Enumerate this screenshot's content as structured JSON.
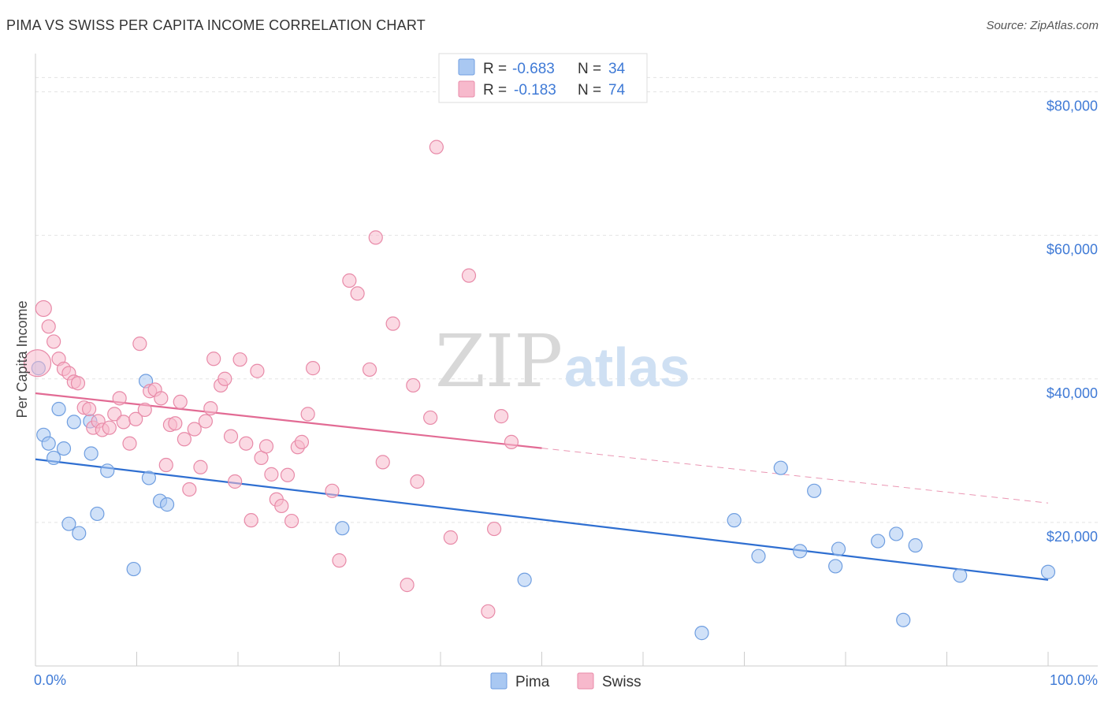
{
  "title": "PIMA VS SWISS PER CAPITA INCOME CORRELATION CHART",
  "source": "Source: ZipAtlas.com",
  "watermark": {
    "part1": "ZIP",
    "part2": "atlas"
  },
  "legend_box": {
    "rows": [
      {
        "r_label": "R =",
        "r_value": "-0.683",
        "n_label": "N =",
        "n_value": "34",
        "color": "#a9c8f2",
        "stroke": "#6f9ee0"
      },
      {
        "r_label": "R =",
        "r_value": "-0.183",
        "n_label": "N =",
        "n_value": "74",
        "color": "#f7b9cc",
        "stroke": "#e88aa8"
      }
    ]
  },
  "chart_data": {
    "type": "scatter",
    "title": "PIMA VS SWISS PER CAPITA INCOME CORRELATION CHART",
    "xlabel": "",
    "ylabel": "Per Capita Income",
    "xlim": [
      0,
      100
    ],
    "ylim": [
      0,
      85000
    ],
    "x_tick_labels": [
      "0.0%",
      "100.0%"
    ],
    "y_ticks": [
      20000,
      40000,
      60000,
      80000
    ],
    "y_tick_labels": [
      "$20,000",
      "$40,000",
      "$60,000",
      "$80,000"
    ],
    "grid": true,
    "legend_placement": "bottom-center",
    "series": [
      {
        "name": "Pima",
        "color": "#a9c8f2",
        "stroke": "#6f9ee0",
        "line_color": "#2f6fd1",
        "trend": {
          "x0": 0,
          "y0": 28800,
          "x1": 100,
          "y1": 12000,
          "dashed_from": 100
        },
        "points": [
          [
            0.3,
            41500
          ],
          [
            0.8,
            32200
          ],
          [
            1.3,
            31000
          ],
          [
            1.8,
            29000
          ],
          [
            2.3,
            35800
          ],
          [
            2.8,
            30300
          ],
          [
            3.3,
            19800
          ],
          [
            3.8,
            34000
          ],
          [
            4.3,
            18500
          ],
          [
            5.4,
            34100
          ],
          [
            5.5,
            29600
          ],
          [
            6.1,
            21200
          ],
          [
            7.1,
            27200
          ],
          [
            9.7,
            13500
          ],
          [
            10.9,
            39700
          ],
          [
            11.2,
            26200
          ],
          [
            12.3,
            23000
          ],
          [
            13.0,
            22500
          ],
          [
            30.3,
            19200
          ],
          [
            48.3,
            12000
          ],
          [
            65.8,
            4600
          ],
          [
            69.0,
            20300
          ],
          [
            71.4,
            15300
          ],
          [
            73.6,
            27600
          ],
          [
            75.5,
            16000
          ],
          [
            76.9,
            24400
          ],
          [
            79.0,
            13900
          ],
          [
            79.3,
            16300
          ],
          [
            83.2,
            17400
          ],
          [
            85.0,
            18400
          ],
          [
            85.7,
            6400
          ],
          [
            86.9,
            16800
          ],
          [
            91.3,
            12600
          ],
          [
            100.0,
            13100
          ]
        ]
      },
      {
        "name": "Swiss",
        "color": "#f7b9cc",
        "stroke": "#e88aa8",
        "line_color": "#e26b94",
        "trend": {
          "x0": 0,
          "y0": 38000,
          "x1": 100,
          "y1": 22700,
          "dashed_from": 50
        },
        "points": [
          [
            0.2,
            42200
          ],
          [
            0.8,
            49800
          ],
          [
            1.3,
            47300
          ],
          [
            1.8,
            45200
          ],
          [
            2.3,
            42800
          ],
          [
            2.8,
            41400
          ],
          [
            3.3,
            40800
          ],
          [
            3.8,
            39600
          ],
          [
            4.2,
            39400
          ],
          [
            4.8,
            36000
          ],
          [
            5.3,
            35800
          ],
          [
            5.7,
            33200
          ],
          [
            6.2,
            34100
          ],
          [
            6.6,
            32900
          ],
          [
            7.3,
            33200
          ],
          [
            7.8,
            35100
          ],
          [
            8.3,
            37300
          ],
          [
            8.7,
            34000
          ],
          [
            9.3,
            31000
          ],
          [
            9.9,
            34400
          ],
          [
            10.3,
            44900
          ],
          [
            10.8,
            35700
          ],
          [
            11.3,
            38300
          ],
          [
            11.8,
            38500
          ],
          [
            12.4,
            37300
          ],
          [
            12.9,
            28000
          ],
          [
            13.3,
            33600
          ],
          [
            13.8,
            33800
          ],
          [
            14.3,
            36800
          ],
          [
            14.7,
            31600
          ],
          [
            15.2,
            24600
          ],
          [
            15.7,
            33000
          ],
          [
            16.3,
            27700
          ],
          [
            16.8,
            34100
          ],
          [
            17.3,
            35900
          ],
          [
            17.6,
            42800
          ],
          [
            18.3,
            39100
          ],
          [
            18.7,
            40000
          ],
          [
            19.3,
            32000
          ],
          [
            19.7,
            25700
          ],
          [
            20.2,
            42700
          ],
          [
            20.8,
            31000
          ],
          [
            21.3,
            20300
          ],
          [
            21.9,
            41100
          ],
          [
            22.3,
            29000
          ],
          [
            22.8,
            30600
          ],
          [
            23.3,
            26700
          ],
          [
            23.8,
            23200
          ],
          [
            24.3,
            22300
          ],
          [
            24.9,
            26600
          ],
          [
            25.3,
            20200
          ],
          [
            25.9,
            30500
          ],
          [
            26.3,
            31200
          ],
          [
            26.9,
            35100
          ],
          [
            27.4,
            41500
          ],
          [
            29.3,
            24400
          ],
          [
            30.0,
            14700
          ],
          [
            31.0,
            53700
          ],
          [
            31.8,
            51900
          ],
          [
            33.0,
            41300
          ],
          [
            33.6,
            59700
          ],
          [
            34.3,
            28400
          ],
          [
            35.3,
            47700
          ],
          [
            36.7,
            11300
          ],
          [
            37.3,
            39100
          ],
          [
            37.7,
            25700
          ],
          [
            39.0,
            34600
          ],
          [
            39.6,
            72300
          ],
          [
            41.0,
            17900
          ],
          [
            42.8,
            54400
          ],
          [
            44.7,
            7600
          ],
          [
            45.3,
            19100
          ],
          [
            46.0,
            34800
          ],
          [
            47.0,
            31200
          ]
        ]
      }
    ]
  }
}
